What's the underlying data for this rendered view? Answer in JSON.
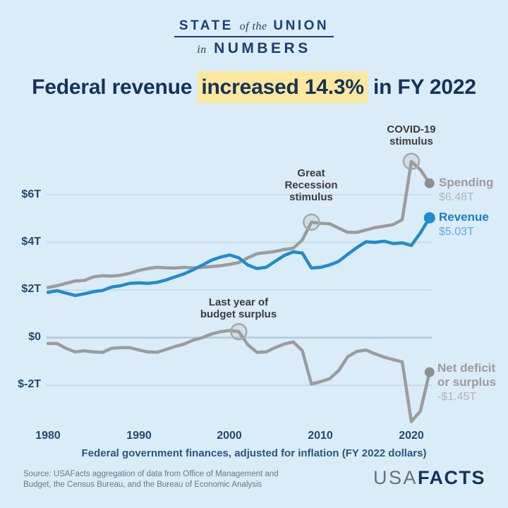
{
  "header": {
    "logo_line1_a": "STATE",
    "logo_line1_b": "of the",
    "logo_line1_c": "UNION",
    "logo_line2_a": "in",
    "logo_line2_b": "NUMBERS"
  },
  "title": {
    "part1": "Federal revenue ",
    "highlight": "increased 14.3%",
    "part2": " in FY 2022"
  },
  "caption": "Federal government finances, adjusted for inflation (FY 2022 dollars)",
  "source": {
    "lines": [
      "Source: USAFacts aggregation of data from Office of Management and",
      "Budget, the Census Bureau, and the Bureau of Economic Analysis"
    ]
  },
  "footer_logo": {
    "usa": "USA",
    "facts": "FACTS"
  },
  "colors": {
    "background": "#daecf8",
    "logo_navy": "#1c3f6e",
    "title_navy": "#16325b",
    "tick_navy": "#27486d",
    "caption_blue": "#2a5580",
    "highlight": "#fbe79e",
    "gray_line": "#9c9c9c",
    "gray_label": "#9b9b9b",
    "gray_value": "#b3b5b8",
    "blue_line": "#1f8ccd",
    "blue_label": "#1580c4",
    "blue_value": "#63a9d9",
    "annotation_text": "#3b3b3b",
    "gridline": "#c9dbe7",
    "gridline_zero": "#b2c9da",
    "source_text": "#6d7682",
    "usa_gray": "#5f7286"
  },
  "chart_data": {
    "type": "line",
    "title": "Federal revenue increased 14.3% in FY 2022",
    "subtitle_caption": "Federal government finances, adjusted for inflation (FY 2022 dollars)",
    "units": "trillions of FY 2022 dollars",
    "grid": true,
    "legend_position": "right-end-labels",
    "xlim": [
      1980,
      2022
    ],
    "ylim": [
      -3.8,
      7.6
    ],
    "x": [
      1980,
      1981,
      1982,
      1983,
      1984,
      1985,
      1986,
      1987,
      1988,
      1989,
      1990,
      1991,
      1992,
      1993,
      1994,
      1995,
      1996,
      1997,
      1998,
      1999,
      2000,
      2001,
      2002,
      2003,
      2004,
      2005,
      2006,
      2007,
      2008,
      2009,
      2010,
      2011,
      2012,
      2013,
      2014,
      2015,
      2016,
      2017,
      2018,
      2019,
      2020,
      2021,
      2022
    ],
    "series": [
      {
        "id": "spending",
        "name": "Spending",
        "color": "#9c9c9c",
        "dot_color": "#8f8f8f",
        "dot_r": 7,
        "end_label": "Spending",
        "end_value_label": "$6.48T",
        "end_value": 6.48,
        "values": [
          2.1,
          2.18,
          2.28,
          2.38,
          2.4,
          2.55,
          2.6,
          2.58,
          2.62,
          2.7,
          2.82,
          2.9,
          2.95,
          2.93,
          2.92,
          2.95,
          2.93,
          2.95,
          2.98,
          3.02,
          3.08,
          3.15,
          3.35,
          3.52,
          3.57,
          3.62,
          3.7,
          3.75,
          4.1,
          4.85,
          4.8,
          4.78,
          4.6,
          4.42,
          4.42,
          4.52,
          4.62,
          4.68,
          4.75,
          4.95,
          7.4,
          7.05,
          6.48
        ]
      },
      {
        "id": "revenue",
        "name": "Revenue",
        "color": "#1f8ccd",
        "dot_color": "#1f8ccd",
        "dot_r": 8,
        "end_label": "Revenue",
        "end_value_label": "$5.03T",
        "end_value": 5.03,
        "values": [
          1.9,
          1.97,
          1.87,
          1.77,
          1.84,
          1.93,
          1.98,
          2.12,
          2.18,
          2.28,
          2.3,
          2.28,
          2.32,
          2.42,
          2.55,
          2.68,
          2.85,
          3.05,
          3.25,
          3.38,
          3.47,
          3.35,
          3.05,
          2.9,
          2.95,
          3.2,
          3.45,
          3.6,
          3.55,
          2.92,
          2.95,
          3.05,
          3.2,
          3.5,
          3.78,
          4.02,
          4.0,
          4.05,
          3.95,
          3.98,
          3.87,
          4.4,
          5.03
        ]
      },
      {
        "id": "net-deficit",
        "name": "Net deficit or surplus",
        "color": "#9c9c9c",
        "dot_color": "#8f8f8f",
        "dot_r": 7,
        "end_label_lines": [
          "Net deficit",
          "or surplus"
        ],
        "end_value_label": "-$1.45T",
        "end_value": -1.45,
        "values": [
          -0.25,
          -0.25,
          -0.45,
          -0.6,
          -0.55,
          -0.6,
          -0.62,
          -0.45,
          -0.42,
          -0.42,
          -0.52,
          -0.6,
          -0.62,
          -0.5,
          -0.37,
          -0.27,
          -0.1,
          0.0,
          0.15,
          0.25,
          0.3,
          0.25,
          -0.3,
          -0.62,
          -0.6,
          -0.42,
          -0.27,
          -0.18,
          -0.55,
          -1.95,
          -1.85,
          -1.73,
          -1.38,
          -0.8,
          -0.58,
          -0.52,
          -0.68,
          -0.82,
          -0.92,
          -1.02,
          -3.53,
          -3.08,
          -1.45
        ]
      }
    ],
    "yticks": [
      {
        "label": "$6T",
        "value": 6
      },
      {
        "label": "$4T",
        "value": 4
      },
      {
        "label": "$2T",
        "value": 2
      },
      {
        "label": "$0",
        "value": 0
      },
      {
        "label": "$-2T",
        "value": -2
      }
    ],
    "xticks": [
      {
        "label": "1980",
        "year": 1980
      },
      {
        "label": "1990",
        "year": 1990
      },
      {
        "label": "2000",
        "year": 2000
      },
      {
        "label": "2010",
        "year": 2010
      },
      {
        "label": "2020",
        "year": 2020
      }
    ],
    "annotations": [
      {
        "id": "covid-stimulus",
        "lines": [
          "COVID-19",
          "stimulus"
        ],
        "series": 0,
        "year": 2020
      },
      {
        "id": "great-recession-stimulus",
        "lines": [
          "Great",
          "Recession",
          "stimulus"
        ],
        "series": 0,
        "year": 2009
      },
      {
        "id": "last-budget-surplus",
        "lines": [
          "Last year of",
          "budget surplus"
        ],
        "series": 2,
        "year": 2001
      }
    ]
  }
}
